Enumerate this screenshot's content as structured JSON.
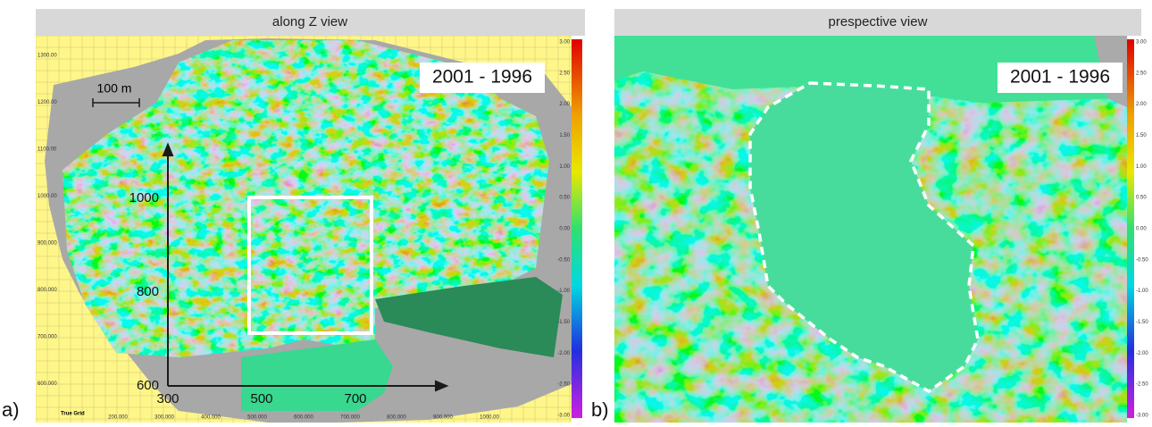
{
  "panels": [
    {
      "title": "along Z view",
      "label": "a)",
      "annotation": "2001 - 1996",
      "scale_bar": "100 m",
      "grid_y_labels": [
        "1300.00",
        "1200.00",
        "1100.00",
        "1000.00",
        "900.000",
        "800.000",
        "700.000",
        "600.000"
      ],
      "grid_x_caption": "True Grid",
      "grid_x_labels": [
        "200.000",
        "300.000",
        "400.000",
        "500.000",
        "600.000",
        "700.000",
        "800.000",
        "900.000",
        "1000.00"
      ],
      "axis_y_labels": [
        "1000",
        "800",
        "600"
      ],
      "axis_x_labels": [
        "300",
        "500",
        "700"
      ],
      "colorbar_labels": [
        "3.00",
        "2.50",
        "2.00",
        "1.50",
        "1.00",
        "0.50",
        "0.00",
        "-0.50",
        "-1.00",
        "-1.50",
        "-2.00",
        "-2.50",
        "-3.00"
      ]
    },
    {
      "title": "prespective view",
      "label": "b)",
      "annotation": "2001 - 1996",
      "colorbar_labels": [
        "3.00",
        "2.50",
        "2.00",
        "1.50",
        "1.00",
        "0.50",
        "0.00",
        "-0.50",
        "-1.00",
        "-1.50",
        "-2.00",
        "-2.50",
        "-3.00"
      ]
    }
  ]
}
